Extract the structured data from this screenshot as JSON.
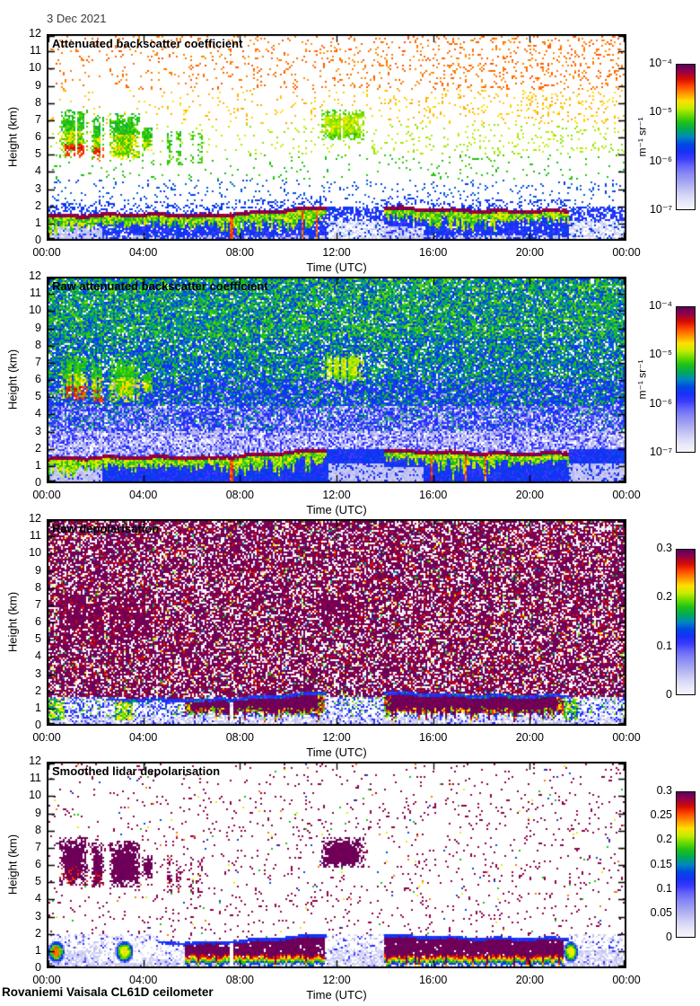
{
  "header": {
    "date": "3 Dec 2021"
  },
  "footer": {
    "instrument": "Rovaniemi Vaisala CL61D ceilometer"
  },
  "chart_data": {
    "type": "heatmap",
    "x": {
      "label": "Time (UTC)",
      "ticks": [
        "00:00",
        "04:00",
        "08:00",
        "12:00",
        "16:00",
        "20:00",
        "00:00"
      ],
      "range_hours": [
        0,
        24
      ]
    },
    "y": {
      "label": "Height (km)",
      "ticks": [
        "0",
        "1",
        "2",
        "3",
        "4",
        "5",
        "6",
        "7",
        "8",
        "9",
        "10",
        "11",
        "12"
      ],
      "range_km": [
        0,
        12
      ]
    },
    "panels": [
      {
        "title": "Attenuated backscatter coefficient",
        "style": "sparse_speckle",
        "colorbar": {
          "scale": "log",
          "min": "1e-7",
          "max": "1e-4",
          "ticks": [
            "10⁻⁴",
            "10⁻⁵",
            "10⁻⁶",
            "10⁻⁷"
          ],
          "unit": "m⁻¹ sr⁻¹"
        }
      },
      {
        "title": "Raw attenuated backscatter coefficient",
        "style": "dense_noise",
        "colorbar": {
          "scale": "log",
          "min": "1e-7",
          "max": "1e-4",
          "ticks": [
            "10⁻⁴",
            "10⁻⁵",
            "10⁻⁶",
            "10⁻⁷"
          ],
          "unit": "m⁻¹ sr⁻¹"
        }
      },
      {
        "title": "Raw depolarisation",
        "style": "purple_noise",
        "colorbar": {
          "scale": "linear",
          "min": 0,
          "max": 0.3,
          "ticks": [
            "0.3",
            "0.2",
            "0.1",
            "0"
          ],
          "unit": ""
        }
      },
      {
        "title": "Smoothed lidar depolarisation",
        "style": "smoothed_depol",
        "colorbar": {
          "scale": "linear",
          "min": 0,
          "max": 0.3,
          "ticks": [
            "0.3",
            "0.25",
            "0.2",
            "0.15",
            "0.1",
            "0.05",
            "0"
          ],
          "unit": ""
        }
      }
    ],
    "features": {
      "cloud_patches": [
        {
          "t0": 0.55,
          "t1": 1.7,
          "z0": 4.8,
          "z1": 7.6,
          "core": "hot"
        },
        {
          "t0": 1.85,
          "t1": 2.35,
          "z0": 4.6,
          "z1": 7.3,
          "core": "hot"
        },
        {
          "t0": 2.6,
          "t1": 3.9,
          "z0": 4.7,
          "z1": 7.4,
          "core": "warm"
        },
        {
          "t0": 3.95,
          "t1": 4.4,
          "z0": 5.2,
          "z1": 6.6,
          "core": "warm"
        },
        {
          "t0": 11.35,
          "t1": 13.15,
          "z0": 5.8,
          "z1": 7.6,
          "core": "mild"
        }
      ],
      "virga_streaks": [
        {
          "t": 5.1
        },
        {
          "t": 5.45
        },
        {
          "t": 6.0
        },
        {
          "t": 6.35
        }
      ],
      "boundary_layer": {
        "cap_segments": [
          {
            "t0": 0.0,
            "t1": 7.0,
            "top0": 1.4,
            "top1": 1.5
          },
          {
            "t0": 7.0,
            "t1": 11.6,
            "top0": 1.55,
            "top1": 1.9
          },
          {
            "t0": 13.95,
            "t1": 21.6,
            "top0": 1.85,
            "top1": 1.7
          }
        ],
        "blob_segments": [
          {
            "t0": 5.7,
            "t1": 11.55
          },
          {
            "t0": 13.95,
            "t1": 21.4
          }
        ],
        "drip_windows": [
          {
            "t0": 0.0,
            "t1": 1.2
          },
          {
            "t0": 7.2,
            "t1": 11.3
          },
          {
            "t0": 15.8,
            "t1": 18.6
          }
        ],
        "green_blobs": [
          {
            "t0": 0.05,
            "t1": 0.75,
            "hot": true
          },
          {
            "t0": 2.85,
            "t1": 3.6,
            "hot": false
          },
          {
            "t0": 21.4,
            "t1": 22.0,
            "hot": false
          }
        ],
        "pale_ground_windows": [
          {
            "t0": 0.0,
            "t1": 2.3
          },
          {
            "t0": 11.7,
            "t1": 15.6
          },
          {
            "t0": 21.6,
            "t1": 24.0
          }
        ],
        "artifact_column_t": 7.65
      }
    }
  }
}
